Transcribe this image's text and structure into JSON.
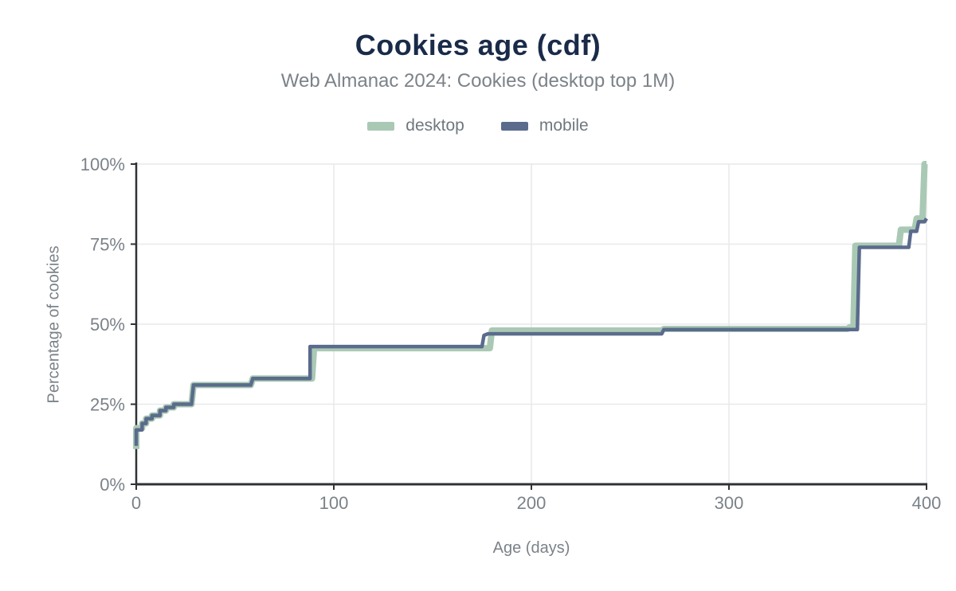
{
  "header": {
    "title": "Cookies age (cdf)",
    "subtitle": "Web Almanac 2024: Cookies (desktop top 1M)"
  },
  "colors": {
    "title": "#1a2b49",
    "muted_text": "#7b8288",
    "axis": "#2f3337",
    "grid": "#e7e9ea",
    "desktop": "#a9c9b4",
    "mobile": "#5a6b8c"
  },
  "chart_data": {
    "type": "line",
    "title": "Cookies age (cdf)",
    "subtitle": "Web Almanac 2024: Cookies (desktop top 1M)",
    "xlabel": "Age (days)",
    "ylabel": "Percentage of cookies",
    "xlim": [
      0,
      400
    ],
    "ylim": [
      0,
      100
    ],
    "grid": true,
    "legend_position": "top",
    "x_ticks": [
      {
        "value": 0,
        "label": "0"
      },
      {
        "value": 100,
        "label": "100"
      },
      {
        "value": 200,
        "label": "200"
      },
      {
        "value": 300,
        "label": "300"
      },
      {
        "value": 400,
        "label": "400"
      }
    ],
    "y_ticks": [
      {
        "value": 0,
        "label": "0%"
      },
      {
        "value": 25,
        "label": "25%"
      },
      {
        "value": 50,
        "label": "50%"
      },
      {
        "value": 75,
        "label": "75%"
      },
      {
        "value": 100,
        "label": "100%"
      }
    ],
    "series": [
      {
        "name": "desktop",
        "color": "#a9c9b4",
        "stroke_width": 8,
        "points": [
          [
            0,
            11
          ],
          [
            0,
            17.5
          ],
          [
            3,
            17.5
          ],
          [
            3,
            19
          ],
          [
            5,
            19
          ],
          [
            5,
            20.5
          ],
          [
            8,
            20.5
          ],
          [
            8,
            21.5
          ],
          [
            12,
            21.5
          ],
          [
            12,
            23
          ],
          [
            15,
            23
          ],
          [
            15,
            24
          ],
          [
            19,
            24
          ],
          [
            19,
            25
          ],
          [
            28,
            25
          ],
          [
            29,
            31
          ],
          [
            58,
            31
          ],
          [
            59,
            33
          ],
          [
            89,
            33
          ],
          [
            90,
            42.5
          ],
          [
            179,
            42.5
          ],
          [
            180,
            48
          ],
          [
            266,
            48
          ],
          [
            267,
            48.5
          ],
          [
            360,
            48.5
          ],
          [
            361,
            49
          ],
          [
            363,
            49
          ],
          [
            364,
            74.5
          ],
          [
            386,
            74.5
          ],
          [
            387,
            79.5
          ],
          [
            394,
            79.5
          ],
          [
            395,
            83
          ],
          [
            398,
            83
          ],
          [
            399,
            100
          ],
          [
            400,
            100
          ]
        ]
      },
      {
        "name": "mobile",
        "color": "#5a6b8c",
        "stroke_width": 4.5,
        "points": [
          [
            0,
            12
          ],
          [
            0,
            17
          ],
          [
            3,
            17
          ],
          [
            3,
            19
          ],
          [
            5,
            19
          ],
          [
            5,
            20.5
          ],
          [
            8,
            20.5
          ],
          [
            8,
            21.5
          ],
          [
            12,
            21.5
          ],
          [
            12,
            23
          ],
          [
            15,
            23
          ],
          [
            15,
            24
          ],
          [
            19,
            24
          ],
          [
            19,
            25
          ],
          [
            28,
            25
          ],
          [
            29,
            31
          ],
          [
            58,
            31
          ],
          [
            59,
            33
          ],
          [
            88,
            33
          ],
          [
            88,
            43
          ],
          [
            175,
            43
          ],
          [
            176,
            46.5
          ],
          [
            178,
            47
          ],
          [
            266,
            47
          ],
          [
            267,
            48.3
          ],
          [
            365,
            48.3
          ],
          [
            366,
            74
          ],
          [
            391,
            74
          ],
          [
            392,
            79
          ],
          [
            395,
            79
          ],
          [
            396,
            82
          ],
          [
            399,
            82
          ],
          [
            400,
            83
          ]
        ]
      }
    ]
  }
}
